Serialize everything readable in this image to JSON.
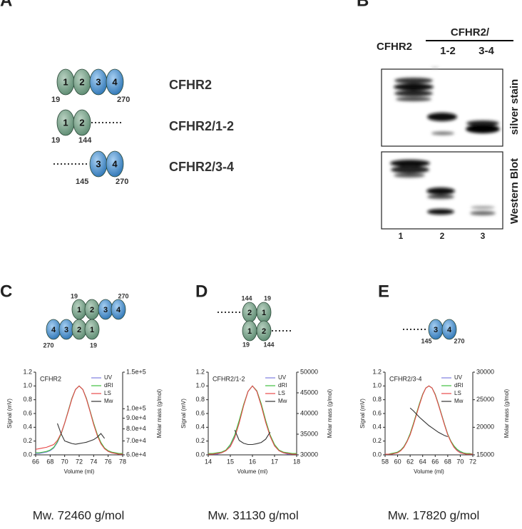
{
  "panel_labels": [
    "A",
    "B",
    "C",
    "D",
    "E"
  ],
  "panel_a": {
    "constructs": [
      {
        "name": "CFHR2",
        "domains": [
          "1",
          "2",
          "3",
          "4"
        ],
        "start": "19",
        "end": "270"
      },
      {
        "name": "CFHR2/1-2",
        "domains": [
          "1",
          "2"
        ],
        "start": "19",
        "end": "144"
      },
      {
        "name": "CFHR2/3-4",
        "domains": [
          "3",
          "4"
        ],
        "start": "145",
        "end": "270"
      }
    ]
  },
  "panel_b": {
    "lane_header": "CFHR2",
    "group_header": "CFHR2/",
    "subheaders": [
      "1-2",
      "3-4"
    ],
    "blots": [
      "silver stain",
      "Western Blot"
    ],
    "lanes": [
      "1",
      "2",
      "3"
    ]
  },
  "diagrams": [
    {
      "rows": [
        {
          "domains": [
            "1",
            "2",
            "3",
            "4"
          ],
          "labels": [
            "19",
            "270"
          ]
        },
        {
          "domains": [
            "4",
            "3",
            "2",
            "1"
          ],
          "labels": [
            "270",
            "19"
          ]
        }
      ]
    },
    {
      "rows": [
        {
          "domains": [
            "2",
            "1"
          ],
          "labels": [
            "144",
            "19"
          ]
        },
        {
          "domains": [
            "1",
            "2"
          ],
          "labels": [
            "19",
            "144"
          ]
        }
      ]
    },
    {
      "rows": [
        {
          "domains": [
            "3",
            "4"
          ],
          "labels": [
            "145",
            "270"
          ]
        }
      ]
    }
  ],
  "chart_data": [
    {
      "type": "line",
      "title": "CFHR2",
      "xlabel": "Volume (ml)",
      "ylabel": "Signal (mV)",
      "y2label": "Molar mass (g/mol)",
      "annotation": "Mw. 72460 g/mol",
      "legend": "upper right",
      "x": [
        66,
        66.5,
        67,
        67.5,
        68,
        68.5,
        69,
        69.5,
        70,
        70.5,
        71,
        71.5,
        72,
        72.5,
        73,
        73.5,
        74,
        74.5,
        75,
        75.5,
        76,
        76.5,
        77,
        77.5,
        78
      ],
      "xlim": [
        66,
        78
      ],
      "xticks": [
        66,
        68,
        70,
        72,
        74,
        76,
        78
      ],
      "ylim": [
        0,
        1.2
      ],
      "yticks": [
        {
          "value": 0,
          "label": "0.0"
        },
        0.2,
        0.4,
        0.6,
        0.8,
        {
          "value": 1,
          "label": "1.0"
        },
        1.2
      ],
      "y2lim": [
        60000,
        150000
      ],
      "y2scale": "log",
      "y2ticks": [
        {
          "value": 60000,
          "label": "6.0e+4"
        },
        {
          "value": 70000,
          "label": "7.0e+4"
        },
        {
          "value": 80000,
          "label": "8.0e+4"
        },
        {
          "value": 90000,
          "label": "9.0e+4"
        },
        {
          "value": 100000,
          "label": "1.0e+5"
        },
        {
          "value": 150000,
          "label": "1.5e+5"
        }
      ],
      "series": [
        {
          "name": "UV",
          "color": "#7f7fe0",
          "values": [
            0.02,
            0.02,
            0.03,
            0.04,
            0.06,
            0.1,
            0.18,
            0.3,
            0.46,
            0.64,
            0.82,
            0.95,
            1.0,
            0.95,
            0.82,
            0.64,
            0.45,
            0.29,
            0.17,
            0.09,
            0.05,
            0.03,
            0.02,
            0.01,
            0.01
          ]
        },
        {
          "name": "dRI",
          "color": "#3fbf3f",
          "values": [
            0.03,
            0.03,
            0.04,
            0.05,
            0.07,
            0.11,
            0.19,
            0.3,
            0.46,
            0.64,
            0.82,
            0.95,
            1.0,
            0.95,
            0.82,
            0.64,
            0.46,
            0.3,
            0.18,
            0.1,
            0.06,
            0.04,
            0.03,
            0.02,
            0.02
          ]
        },
        {
          "name": "LS",
          "color": "#e84848",
          "values": [
            0.08,
            0.09,
            0.1,
            0.11,
            0.13,
            0.15,
            0.21,
            0.31,
            0.46,
            0.63,
            0.81,
            0.95,
            1.0,
            0.95,
            0.81,
            0.63,
            0.44,
            0.28,
            0.16,
            0.09,
            0.05,
            0.03,
            0.02,
            0.01,
            0.01
          ]
        },
        {
          "name": "Mw",
          "color": "#333333",
          "axis": "y2",
          "values": [
            null,
            null,
            null,
            null,
            null,
            null,
            85000,
            76000,
            70000,
            69000,
            68000,
            67500,
            68000,
            68500,
            69000,
            70000,
            71000,
            73000,
            76000,
            72000,
            null,
            null,
            null,
            null,
            null
          ]
        }
      ]
    },
    {
      "type": "line",
      "title": "CFHR2/1-2",
      "xlabel": "Volume (ml)",
      "ylabel": "Signal (mV)",
      "y2label": "Molar mass (g/mol)",
      "annotation": "Mw. 31130 g/mol",
      "legend": "upper right",
      "x": [
        14,
        14.2,
        14.4,
        14.6,
        14.8,
        15,
        15.2,
        15.4,
        15.6,
        15.8,
        16,
        16.2,
        16.4,
        16.6,
        16.8,
        17,
        17.2,
        17.4,
        17.6,
        17.8,
        18
      ],
      "xlim": [
        14,
        18
      ],
      "xticks": [
        14,
        15,
        16,
        17,
        18
      ],
      "ylim": [
        0,
        1.2
      ],
      "yticks": [
        {
          "value": 0,
          "label": "0.0"
        },
        0.2,
        0.4,
        0.6,
        0.8,
        {
          "value": 1,
          "label": "1.0"
        },
        1.2
      ],
      "y2lim": [
        30000,
        50000
      ],
      "y2ticks": [
        30000,
        35000,
        40000,
        45000,
        50000
      ],
      "series": [
        {
          "name": "UV",
          "color": "#7f7fe0",
          "values": [
            0.01,
            0.01,
            0.01,
            0.03,
            0.06,
            0.13,
            0.27,
            0.48,
            0.72,
            0.92,
            1.0,
            0.92,
            0.72,
            0.48,
            0.27,
            0.13,
            0.06,
            0.03,
            0.01,
            0.01,
            0.01
          ]
        },
        {
          "name": "dRI",
          "color": "#3fbf3f",
          "values": [
            0.02,
            0.02,
            0.03,
            0.04,
            0.07,
            0.15,
            0.29,
            0.5,
            0.73,
            0.92,
            1.0,
            0.93,
            0.74,
            0.5,
            0.29,
            0.15,
            0.07,
            0.04,
            0.03,
            0.02,
            0.02
          ]
        },
        {
          "name": "LS",
          "color": "#e84848",
          "values": [
            0.01,
            0.01,
            0.02,
            0.03,
            0.06,
            0.12,
            0.25,
            0.46,
            0.71,
            0.92,
            1.0,
            0.92,
            0.71,
            0.47,
            0.27,
            0.13,
            0.06,
            0.03,
            0.02,
            0.01,
            0.01
          ]
        },
        {
          "name": "Mw",
          "color": "#333333",
          "axis": "y2",
          "values": [
            null,
            null,
            null,
            null,
            null,
            null,
            36000,
            33500,
            32800,
            32500,
            32500,
            32700,
            33000,
            33800,
            35500,
            null,
            null,
            null,
            null,
            null,
            null
          ]
        }
      ]
    },
    {
      "type": "line",
      "title": "CFHR2/3-4",
      "xlabel": "Volume (ml)",
      "ylabel": "Signal (mV)",
      "y2label": "Molar mass (g/mol)",
      "annotation": "Mw. 17820 g/mol",
      "legend": "upper right",
      "x": [
        58,
        58.5,
        59,
        59.5,
        60,
        60.5,
        61,
        61.5,
        62,
        62.5,
        63,
        63.5,
        64,
        64.5,
        65,
        65.5,
        66,
        66.5,
        67,
        67.5,
        68,
        68.5,
        69,
        69.5,
        70,
        70.5,
        71,
        71.5,
        72
      ],
      "xlim": [
        58,
        72
      ],
      "xticks": [
        58,
        60,
        62,
        64,
        66,
        68,
        70,
        72
      ],
      "ylim": [
        0,
        1.2
      ],
      "yticks": [
        {
          "value": 0,
          "label": "0.0"
        },
        0.2,
        0.4,
        0.6,
        0.8,
        {
          "value": 1,
          "label": "1.0"
        },
        1.2
      ],
      "y2lim": [
        15000,
        30000
      ],
      "y2ticks": [
        15000,
        20000,
        25000,
        30000
      ],
      "series": [
        {
          "name": "UV",
          "color": "#7f7fe0",
          "values": [
            0.01,
            0.01,
            0.01,
            0.02,
            0.04,
            0.07,
            0.12,
            0.2,
            0.3,
            0.44,
            0.59,
            0.74,
            0.88,
            0.97,
            1.0,
            0.97,
            0.88,
            0.74,
            0.59,
            0.44,
            0.3,
            0.2,
            0.12,
            0.07,
            0.04,
            0.02,
            0.01,
            0.01,
            0.01
          ]
        },
        {
          "name": "dRI",
          "color": "#3fbf3f",
          "values": [
            0.01,
            0.01,
            0.02,
            0.03,
            0.04,
            0.07,
            0.12,
            0.2,
            0.31,
            0.45,
            0.6,
            0.75,
            0.88,
            0.97,
            1.0,
            0.97,
            0.88,
            0.74,
            0.59,
            0.44,
            0.3,
            0.2,
            0.13,
            0.08,
            0.05,
            0.03,
            0.02,
            0.02,
            0.01
          ]
        },
        {
          "name": "LS",
          "color": "#e84848",
          "values": [
            0.01,
            0.01,
            0.01,
            0.02,
            0.03,
            0.06,
            0.11,
            0.19,
            0.29,
            0.43,
            0.58,
            0.73,
            0.87,
            0.97,
            1.0,
            0.97,
            0.87,
            0.73,
            0.58,
            0.43,
            0.29,
            0.19,
            0.11,
            0.06,
            0.03,
            0.02,
            0.01,
            0.01,
            0.01
          ]
        },
        {
          "name": "Mw",
          "color": "#333333",
          "axis": "y2",
          "values": [
            null,
            null,
            null,
            null,
            null,
            null,
            null,
            null,
            23500,
            23000,
            22400,
            21800,
            21300,
            20800,
            20300,
            19900,
            19500,
            19100,
            18800,
            18500,
            18300,
            null,
            null,
            null,
            null,
            null,
            null,
            null,
            null
          ]
        }
      ]
    }
  ]
}
